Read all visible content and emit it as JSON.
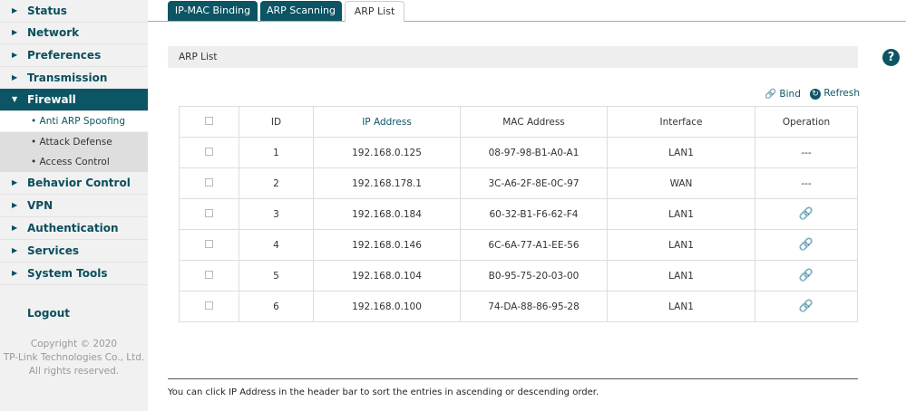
{
  "sidebar": {
    "items": [
      {
        "label": "Status"
      },
      {
        "label": "Network"
      },
      {
        "label": "Preferences"
      },
      {
        "label": "Transmission"
      },
      {
        "label": "Firewall",
        "expanded": true
      },
      {
        "label": "Behavior Control"
      },
      {
        "label": "VPN"
      },
      {
        "label": "Authentication"
      },
      {
        "label": "Services"
      },
      {
        "label": "System Tools"
      }
    ],
    "firewall_sub": [
      {
        "label": "• Anti ARP Spoofing",
        "selected": true
      },
      {
        "label": "• Attack Defense"
      },
      {
        "label": "• Access Control"
      }
    ],
    "logout": "Logout",
    "copyright": [
      "Copyright © 2020",
      "TP-Link Technologies Co., Ltd.",
      "All rights reserved."
    ]
  },
  "tabs": [
    {
      "label": "IP-MAC Binding"
    },
    {
      "label": "ARP Scanning"
    },
    {
      "label": "ARP List",
      "active": true
    }
  ],
  "section_title": "ARP List",
  "help_icon": "?",
  "toolbar": {
    "bind": "Bind",
    "refresh": "Refresh"
  },
  "table": {
    "headers": [
      "ID",
      "IP Address",
      "MAC Address",
      "Interface",
      "Operation"
    ],
    "rows": [
      {
        "id": "1",
        "ip": "192.168.0.125",
        "mac": "08-97-98-B1-A0-A1",
        "iface": "LAN1",
        "op": "---"
      },
      {
        "id": "2",
        "ip": "192.168.178.1",
        "mac": "3C-A6-2F-8E-0C-97",
        "iface": "WAN",
        "op": "---"
      },
      {
        "id": "3",
        "ip": "192.168.0.184",
        "mac": "60-32-B1-F6-62-F4",
        "iface": "LAN1",
        "op": "bind-icon"
      },
      {
        "id": "4",
        "ip": "192.168.0.146",
        "mac": "6C-6A-77-A1-EE-56",
        "iface": "LAN1",
        "op": "bind-icon"
      },
      {
        "id": "5",
        "ip": "192.168.0.104",
        "mac": "B0-95-75-20-03-00",
        "iface": "LAN1",
        "op": "bind-icon"
      },
      {
        "id": "6",
        "ip": "192.168.0.100",
        "mac": "74-DA-88-86-95-28",
        "iface": "LAN1",
        "op": "bind-icon"
      }
    ]
  },
  "note": "You can click IP Address in the header bar to sort the entries in ascending or descending order.",
  "colors": {
    "accent": "#0b5565"
  }
}
